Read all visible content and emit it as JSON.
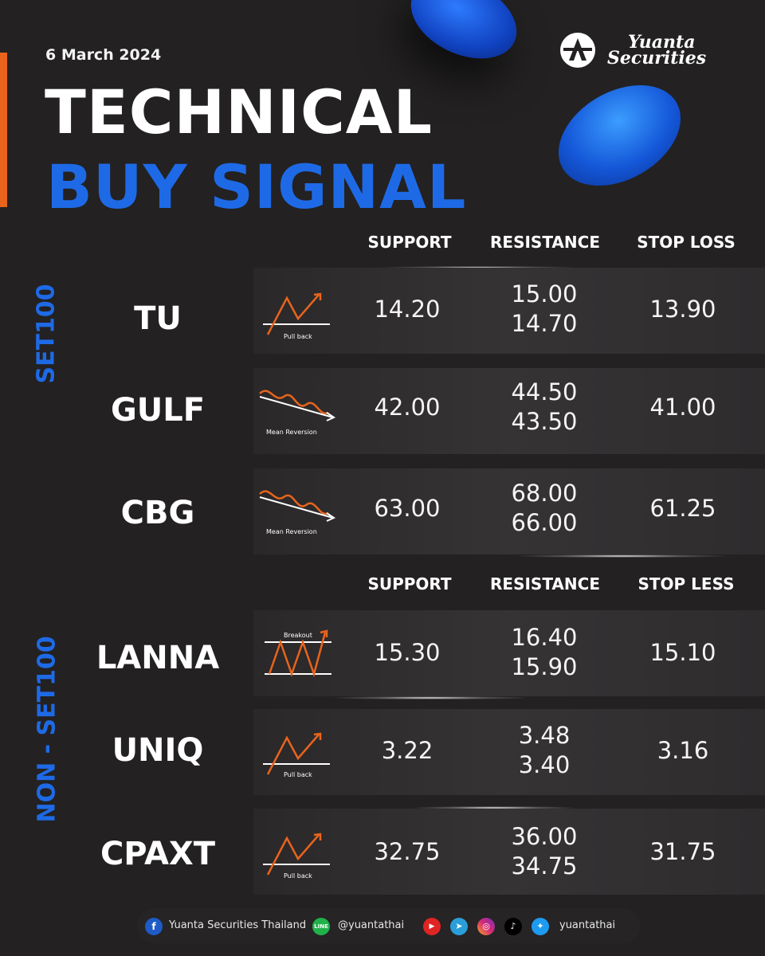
{
  "header": {
    "date": "6 March 2024",
    "title_line1": "TECHNICAL",
    "title_line2": "BUY SIGNAL",
    "brand_line1": "Yuanta",
    "brand_line2": "Securities"
  },
  "colors": {
    "accent_orange": "#e8641c",
    "brand_blue": "#1e6ae6",
    "background": "#232122"
  },
  "section_set100": {
    "label": "SET100",
    "headers": {
      "support": "SUPPORT",
      "resistance": "RESISTANCE",
      "stop": "STOP LOSS"
    },
    "rows": [
      {
        "ticker": "TU",
        "pattern": "Pull back",
        "support": "14.20",
        "resistance_1": "15.00",
        "resistance_2": "14.70",
        "stop": "13.90"
      },
      {
        "ticker": "GULF",
        "pattern": "Mean Reversion",
        "support": "42.00",
        "resistance_1": "44.50",
        "resistance_2": "43.50",
        "stop": "41.00"
      },
      {
        "ticker": "CBG",
        "pattern": "Mean Reversion",
        "support": "63.00",
        "resistance_1": "68.00",
        "resistance_2": "66.00",
        "stop": "61.25"
      }
    ]
  },
  "section_non_set100": {
    "label": "NON - SET100",
    "headers": {
      "support": "SUPPORT",
      "resistance": "RESISTANCE",
      "stop": "STOP LESS"
    },
    "rows": [
      {
        "ticker": "LANNA",
        "pattern": "Breakout",
        "support": "15.30",
        "resistance_1": "16.40",
        "resistance_2": "15.90",
        "stop": "15.10"
      },
      {
        "ticker": "UNIQ",
        "pattern": "Pull back",
        "support": "3.22",
        "resistance_1": "3.48",
        "resistance_2": "3.40",
        "stop": "3.16"
      },
      {
        "ticker": "CPAXT",
        "pattern": "Pull back",
        "support": "32.75",
        "resistance_1": "36.00",
        "resistance_2": "34.75",
        "stop": "31.75"
      }
    ]
  },
  "footer": {
    "facebook": "Yuanta Securities Thailand",
    "line": "@yuantathai",
    "social_handle": "yuantathai",
    "icons": [
      "facebook-icon",
      "line-icon",
      "youtube-icon",
      "telegram-icon",
      "instagram-icon",
      "tiktok-icon",
      "twitter-icon"
    ]
  }
}
